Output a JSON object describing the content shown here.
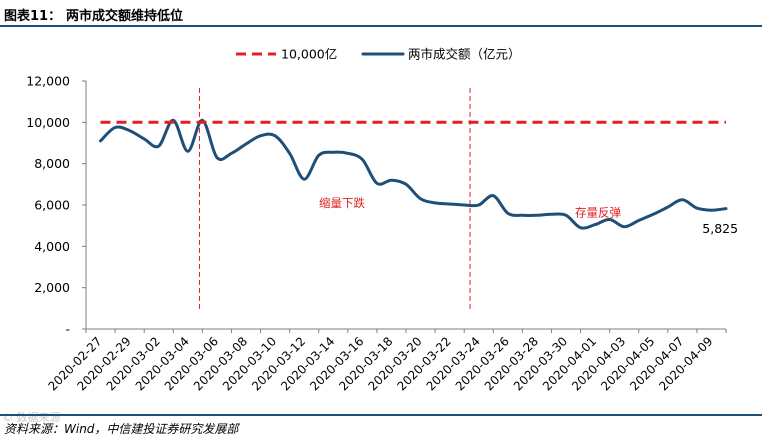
{
  "figure": {
    "number": "图表11：",
    "title": "两市成交额维持低位",
    "source": "资料来源：Wind，中信建投证券研究发展部",
    "watermark": "© 数据来源"
  },
  "chart_data": {
    "type": "line",
    "title": "两市成交额维持低位",
    "xlabel": "",
    "ylabel": "",
    "ylim": [
      0,
      12000
    ],
    "yticks": [
      0,
      2000,
      4000,
      6000,
      8000,
      10000,
      12000
    ],
    "ytick_labels": [
      "-",
      "2,000",
      "4,000",
      "6,000",
      "8,000",
      "10,000",
      "12,000"
    ],
    "grid": false,
    "legend_position": "top-center",
    "x_tick_labels": [
      "2020-02-27",
      "2020-02-29",
      "2020-03-02",
      "2020-03-04",
      "2020-03-06",
      "2020-03-08",
      "2020-03-10",
      "2020-03-12",
      "2020-03-14",
      "2020-03-16",
      "2020-03-18",
      "2020-03-20",
      "2020-03-22",
      "2020-03-24",
      "2020-03-26",
      "2020-03-28",
      "2020-03-30",
      "2020-04-01",
      "2020-04-03",
      "2020-04-05",
      "2020-04-07",
      "2020-04-09"
    ],
    "series": [
      {
        "name": "两市成交额（亿元）",
        "color": "#1f4e79",
        "style": "solid",
        "x": [
          0,
          0.5,
          1,
          1.5,
          2,
          2.5,
          3,
          3.5,
          4,
          4.5,
          5,
          5.5,
          6,
          6.5,
          7,
          7.5,
          8,
          8.5,
          9,
          9.5,
          10,
          10.5,
          11,
          11.5,
          12,
          12.5,
          13,
          13.5,
          14,
          14.5,
          15,
          15.5,
          16,
          16.5,
          17,
          17.5,
          18,
          18.5,
          19,
          19.5,
          20,
          20.5,
          21,
          21.5
        ],
        "values": [
          9100,
          9750,
          9600,
          9200,
          8850,
          10100,
          8600,
          10100,
          8300,
          8500,
          8950,
          9350,
          9350,
          8500,
          7250,
          8400,
          8550,
          8500,
          8200,
          7050,
          7200,
          7000,
          6300,
          6100,
          6050,
          6000,
          6000,
          6450,
          5600,
          5500,
          5500,
          5550,
          5500,
          4900,
          5050,
          5300,
          4950,
          5250,
          5550,
          5900,
          6250,
          5850,
          5750,
          5825
        ]
      },
      {
        "name": "10,000亿",
        "color": "#e02020",
        "style": "dashed",
        "x": [
          0,
          21.5
        ],
        "values": [
          10000,
          10000
        ]
      }
    ],
    "vlines": [
      {
        "x": 3.4,
        "color": "#e02020"
      },
      {
        "x": 12.7,
        "color": "#e02020"
      }
    ],
    "annotations": [
      {
        "text": "缩量下跌",
        "x": 8.3,
        "y": 5900,
        "color": "#e02020"
      },
      {
        "text": "存量反弹",
        "x": 17.1,
        "y": 5450,
        "color": "#e02020"
      },
      {
        "text": "5,825",
        "x": 21.3,
        "y": 4650,
        "color": "#000000"
      }
    ]
  }
}
